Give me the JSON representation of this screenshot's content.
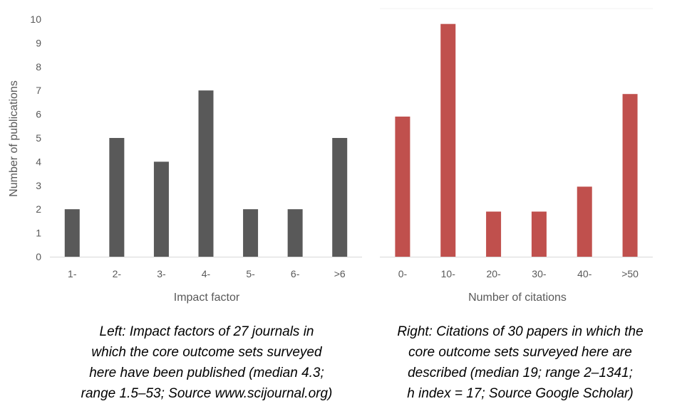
{
  "chart_data": [
    {
      "type": "bar",
      "categories": [
        "1-",
        "2-",
        "3-",
        "4-",
        "5-",
        "6-",
        ">6"
      ],
      "values": [
        2,
        5,
        4,
        7,
        2,
        2,
        5
      ],
      "xlabel": "Impact factor",
      "ylabel": "Number of publications",
      "ylim": [
        0,
        10
      ],
      "yticks": [
        0,
        1,
        2,
        3,
        4,
        5,
        6,
        7,
        8,
        9,
        10
      ],
      "grid": false,
      "color": "#595959"
    },
    {
      "type": "bar",
      "categories": [
        "0-",
        "10-",
        "20-",
        "30-",
        "40-",
        ">50"
      ],
      "values": [
        5.9,
        9.8,
        1.9,
        1.9,
        2.95,
        6.85
      ],
      "xlabel": "Number of citations",
      "ylabel": "",
      "ylim": [
        0,
        10
      ],
      "grid": false,
      "color": "#c0504d"
    }
  ],
  "captions": {
    "left": "Left: Impact factors of 27 journals in\nwhich the core outcome sets surveyed\nhere have been published (median 4.3;\nrange 1.5–53; Source www.scijournal.org)",
    "right": "Right: Citations of 30 papers in which the\ncore outcome sets surveyed here are\ndescribed (median 19; range 2–1341;\nh index = 17; Source Google Scholar)"
  }
}
